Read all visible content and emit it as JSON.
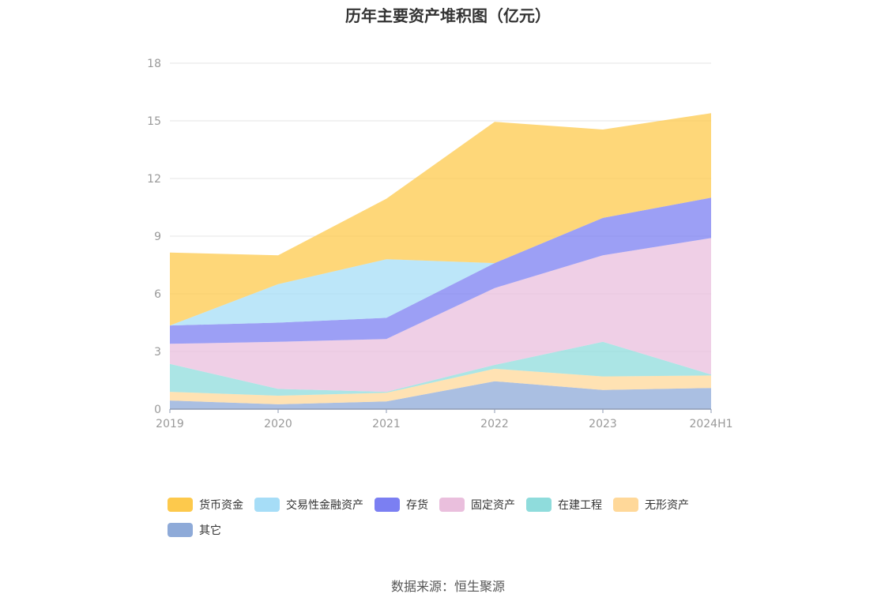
{
  "chart_data": {
    "type": "area",
    "stacked": true,
    "title": "历年主要资产堆积图（亿元）",
    "categories": [
      "2019",
      "2020",
      "2021",
      "2022",
      "2023",
      "2024H1"
    ],
    "ylim": [
      0,
      18
    ],
    "yticks": [
      "0",
      "3",
      "6",
      "9",
      "12",
      "15",
      "18"
    ],
    "grid": true,
    "legend_position": "bottom",
    "series": [
      {
        "name": "其它",
        "color": "#8eaad8",
        "values": [
          0.45,
          0.25,
          0.4,
          1.45,
          1.0,
          1.1
        ]
      },
      {
        "name": "无形资产",
        "color": "#ffd899",
        "values": [
          0.45,
          0.45,
          0.45,
          0.65,
          0.7,
          0.65
        ]
      },
      {
        "name": "在建工程",
        "color": "#8fdcdc",
        "values": [
          1.45,
          0.35,
          0.05,
          0.2,
          1.8,
          0.05
        ]
      },
      {
        "name": "固定资产",
        "color": "#eabfdd",
        "values": [
          1.05,
          2.45,
          2.75,
          4.0,
          4.5,
          7.1
        ]
      },
      {
        "name": "存货",
        "color": "#7b7ff2",
        "values": [
          0.95,
          1.0,
          1.1,
          1.3,
          1.95,
          2.1
        ]
      },
      {
        "name": "交易性金融资产",
        "color": "#a6ddf7",
        "values": [
          0.0,
          2.0,
          3.05,
          0.0,
          0.0,
          0.0
        ]
      },
      {
        "name": "货币资金",
        "color": "#fdc94c",
        "values": [
          3.8,
          1.5,
          3.15,
          7.35,
          4.6,
          4.4
        ]
      }
    ],
    "legend_order": [
      "货币资金",
      "交易性金融资产",
      "存货",
      "固定资产",
      "在建工程",
      "无形资产",
      "其它"
    ]
  },
  "source": "数据来源：恒生聚源"
}
